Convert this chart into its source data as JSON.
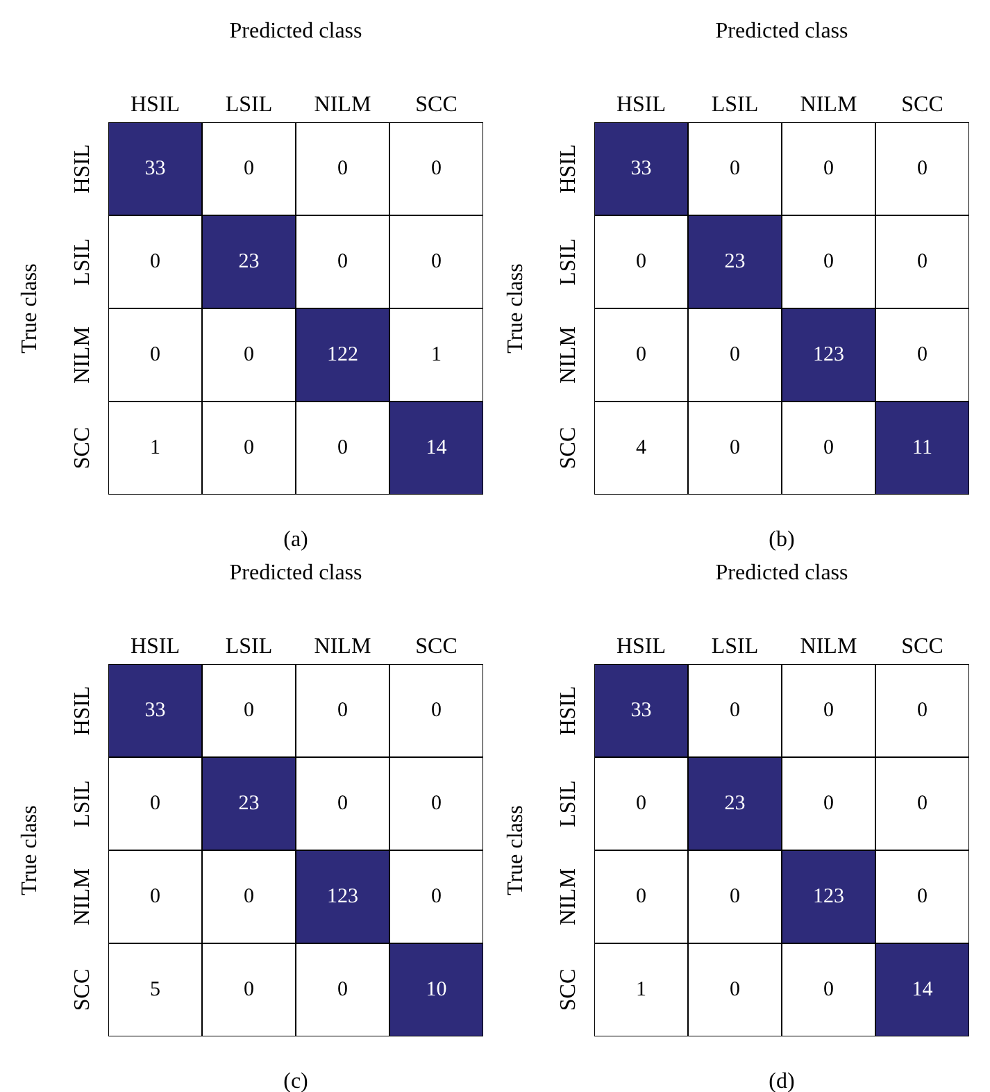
{
  "chart_data": [
    {
      "type": "heatmap",
      "xlabel": "Predicted class",
      "ylabel": "True class",
      "categories": [
        "HSIL",
        "LSIL",
        "NILM",
        "SCC"
      ],
      "y_categories": [
        "HSIL",
        "LSIL",
        "NILM",
        "SCC"
      ],
      "colors": [
        "#ffffff",
        "#2e2b7a"
      ],
      "cells": [
        [
          33,
          0,
          0,
          0
        ],
        [
          0,
          23,
          0,
          0
        ],
        [
          0,
          0,
          122,
          1
        ],
        [
          1,
          0,
          0,
          14
        ]
      ],
      "data_labels": true,
      "annotations": [
        "(a)"
      ]
    },
    {
      "type": "heatmap",
      "xlabel": "Predicted class",
      "ylabel": "True class",
      "categories": [
        "HSIL",
        "LSIL",
        "NILM",
        "SCC"
      ],
      "y_categories": [
        "HSIL",
        "LSIL",
        "NILM",
        "SCC"
      ],
      "colors": [
        "#ffffff",
        "#2e2b7a"
      ],
      "cells": [
        [
          33,
          0,
          0,
          0
        ],
        [
          0,
          23,
          0,
          0
        ],
        [
          0,
          0,
          123,
          0
        ],
        [
          4,
          0,
          0,
          11
        ]
      ],
      "data_labels": true,
      "annotations": [
        "(b)"
      ]
    },
    {
      "type": "heatmap",
      "xlabel": "Predicted class",
      "ylabel": "True class",
      "categories": [
        "HSIL",
        "LSIL",
        "NILM",
        "SCC"
      ],
      "y_categories": [
        "HSIL",
        "LSIL",
        "NILM",
        "SCC"
      ],
      "colors": [
        "#ffffff",
        "#2e2b7a"
      ],
      "cells": [
        [
          33,
          0,
          0,
          0
        ],
        [
          0,
          23,
          0,
          0
        ],
        [
          0,
          0,
          123,
          0
        ],
        [
          5,
          0,
          0,
          10
        ]
      ],
      "data_labels": true,
      "annotations": [
        "(c)"
      ]
    },
    {
      "type": "heatmap",
      "xlabel": "Predicted class",
      "ylabel": "True class",
      "categories": [
        "HSIL",
        "LSIL",
        "NILM",
        "SCC"
      ],
      "y_categories": [
        "HSIL",
        "LSIL",
        "NILM",
        "SCC"
      ],
      "colors": [
        "#ffffff",
        "#2e2b7a"
      ],
      "cells": [
        [
          33,
          0,
          0,
          0
        ],
        [
          0,
          23,
          0,
          0
        ],
        [
          0,
          0,
          123,
          0
        ],
        [
          1,
          0,
          0,
          14
        ]
      ],
      "data_labels": true,
      "annotations": [
        "(d)"
      ]
    }
  ]
}
